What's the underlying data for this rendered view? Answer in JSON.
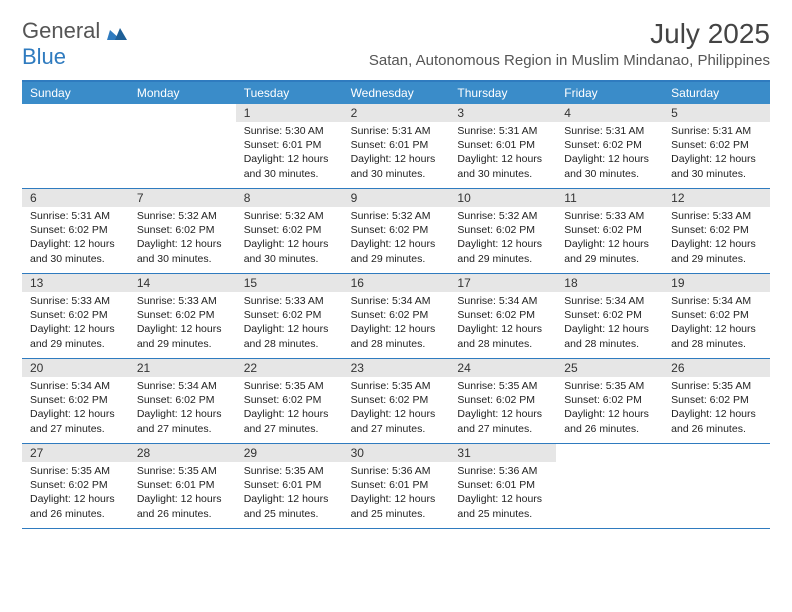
{
  "brand": {
    "name_part1": "General",
    "name_part2": "Blue",
    "part1_color": "#555555",
    "part2_color": "#2f7bbf",
    "mark_color": "#2f7bbf"
  },
  "title": {
    "month_year": "July 2025",
    "location": "Satan, Autonomous Region in Muslim Mindanao, Philippines"
  },
  "colors": {
    "header_band": "#3a8cc9",
    "header_text": "#ffffff",
    "rule": "#2f7bbf",
    "daynum_bg": "#e6e6e6",
    "body_text": "#222222",
    "page_bg": "#ffffff"
  },
  "typography": {
    "title_fontsize": 28,
    "location_fontsize": 15,
    "dow_fontsize": 12,
    "daynum_fontsize": 12,
    "body_fontsize": 10.5
  },
  "calendar": {
    "type": "table",
    "columns": [
      "Sunday",
      "Monday",
      "Tuesday",
      "Wednesday",
      "Thursday",
      "Friday",
      "Saturday"
    ],
    "weeks": [
      [
        null,
        null,
        {
          "n": "1",
          "lines": [
            "Sunrise: 5:30 AM",
            "Sunset: 6:01 PM",
            "Daylight: 12 hours",
            "and 30 minutes."
          ]
        },
        {
          "n": "2",
          "lines": [
            "Sunrise: 5:31 AM",
            "Sunset: 6:01 PM",
            "Daylight: 12 hours",
            "and 30 minutes."
          ]
        },
        {
          "n": "3",
          "lines": [
            "Sunrise: 5:31 AM",
            "Sunset: 6:01 PM",
            "Daylight: 12 hours",
            "and 30 minutes."
          ]
        },
        {
          "n": "4",
          "lines": [
            "Sunrise: 5:31 AM",
            "Sunset: 6:02 PM",
            "Daylight: 12 hours",
            "and 30 minutes."
          ]
        },
        {
          "n": "5",
          "lines": [
            "Sunrise: 5:31 AM",
            "Sunset: 6:02 PM",
            "Daylight: 12 hours",
            "and 30 minutes."
          ]
        }
      ],
      [
        {
          "n": "6",
          "lines": [
            "Sunrise: 5:31 AM",
            "Sunset: 6:02 PM",
            "Daylight: 12 hours",
            "and 30 minutes."
          ]
        },
        {
          "n": "7",
          "lines": [
            "Sunrise: 5:32 AM",
            "Sunset: 6:02 PM",
            "Daylight: 12 hours",
            "and 30 minutes."
          ]
        },
        {
          "n": "8",
          "lines": [
            "Sunrise: 5:32 AM",
            "Sunset: 6:02 PM",
            "Daylight: 12 hours",
            "and 30 minutes."
          ]
        },
        {
          "n": "9",
          "lines": [
            "Sunrise: 5:32 AM",
            "Sunset: 6:02 PM",
            "Daylight: 12 hours",
            "and 29 minutes."
          ]
        },
        {
          "n": "10",
          "lines": [
            "Sunrise: 5:32 AM",
            "Sunset: 6:02 PM",
            "Daylight: 12 hours",
            "and 29 minutes."
          ]
        },
        {
          "n": "11",
          "lines": [
            "Sunrise: 5:33 AM",
            "Sunset: 6:02 PM",
            "Daylight: 12 hours",
            "and 29 minutes."
          ]
        },
        {
          "n": "12",
          "lines": [
            "Sunrise: 5:33 AM",
            "Sunset: 6:02 PM",
            "Daylight: 12 hours",
            "and 29 minutes."
          ]
        }
      ],
      [
        {
          "n": "13",
          "lines": [
            "Sunrise: 5:33 AM",
            "Sunset: 6:02 PM",
            "Daylight: 12 hours",
            "and 29 minutes."
          ]
        },
        {
          "n": "14",
          "lines": [
            "Sunrise: 5:33 AM",
            "Sunset: 6:02 PM",
            "Daylight: 12 hours",
            "and 29 minutes."
          ]
        },
        {
          "n": "15",
          "lines": [
            "Sunrise: 5:33 AM",
            "Sunset: 6:02 PM",
            "Daylight: 12 hours",
            "and 28 minutes."
          ]
        },
        {
          "n": "16",
          "lines": [
            "Sunrise: 5:34 AM",
            "Sunset: 6:02 PM",
            "Daylight: 12 hours",
            "and 28 minutes."
          ]
        },
        {
          "n": "17",
          "lines": [
            "Sunrise: 5:34 AM",
            "Sunset: 6:02 PM",
            "Daylight: 12 hours",
            "and 28 minutes."
          ]
        },
        {
          "n": "18",
          "lines": [
            "Sunrise: 5:34 AM",
            "Sunset: 6:02 PM",
            "Daylight: 12 hours",
            "and 28 minutes."
          ]
        },
        {
          "n": "19",
          "lines": [
            "Sunrise: 5:34 AM",
            "Sunset: 6:02 PM",
            "Daylight: 12 hours",
            "and 28 minutes."
          ]
        }
      ],
      [
        {
          "n": "20",
          "lines": [
            "Sunrise: 5:34 AM",
            "Sunset: 6:02 PM",
            "Daylight: 12 hours",
            "and 27 minutes."
          ]
        },
        {
          "n": "21",
          "lines": [
            "Sunrise: 5:34 AM",
            "Sunset: 6:02 PM",
            "Daylight: 12 hours",
            "and 27 minutes."
          ]
        },
        {
          "n": "22",
          "lines": [
            "Sunrise: 5:35 AM",
            "Sunset: 6:02 PM",
            "Daylight: 12 hours",
            "and 27 minutes."
          ]
        },
        {
          "n": "23",
          "lines": [
            "Sunrise: 5:35 AM",
            "Sunset: 6:02 PM",
            "Daylight: 12 hours",
            "and 27 minutes."
          ]
        },
        {
          "n": "24",
          "lines": [
            "Sunrise: 5:35 AM",
            "Sunset: 6:02 PM",
            "Daylight: 12 hours",
            "and 27 minutes."
          ]
        },
        {
          "n": "25",
          "lines": [
            "Sunrise: 5:35 AM",
            "Sunset: 6:02 PM",
            "Daylight: 12 hours",
            "and 26 minutes."
          ]
        },
        {
          "n": "26",
          "lines": [
            "Sunrise: 5:35 AM",
            "Sunset: 6:02 PM",
            "Daylight: 12 hours",
            "and 26 minutes."
          ]
        }
      ],
      [
        {
          "n": "27",
          "lines": [
            "Sunrise: 5:35 AM",
            "Sunset: 6:02 PM",
            "Daylight: 12 hours",
            "and 26 minutes."
          ]
        },
        {
          "n": "28",
          "lines": [
            "Sunrise: 5:35 AM",
            "Sunset: 6:01 PM",
            "Daylight: 12 hours",
            "and 26 minutes."
          ]
        },
        {
          "n": "29",
          "lines": [
            "Sunrise: 5:35 AM",
            "Sunset: 6:01 PM",
            "Daylight: 12 hours",
            "and 25 minutes."
          ]
        },
        {
          "n": "30",
          "lines": [
            "Sunrise: 5:36 AM",
            "Sunset: 6:01 PM",
            "Daylight: 12 hours",
            "and 25 minutes."
          ]
        },
        {
          "n": "31",
          "lines": [
            "Sunrise: 5:36 AM",
            "Sunset: 6:01 PM",
            "Daylight: 12 hours",
            "and 25 minutes."
          ]
        },
        null,
        null
      ]
    ]
  }
}
